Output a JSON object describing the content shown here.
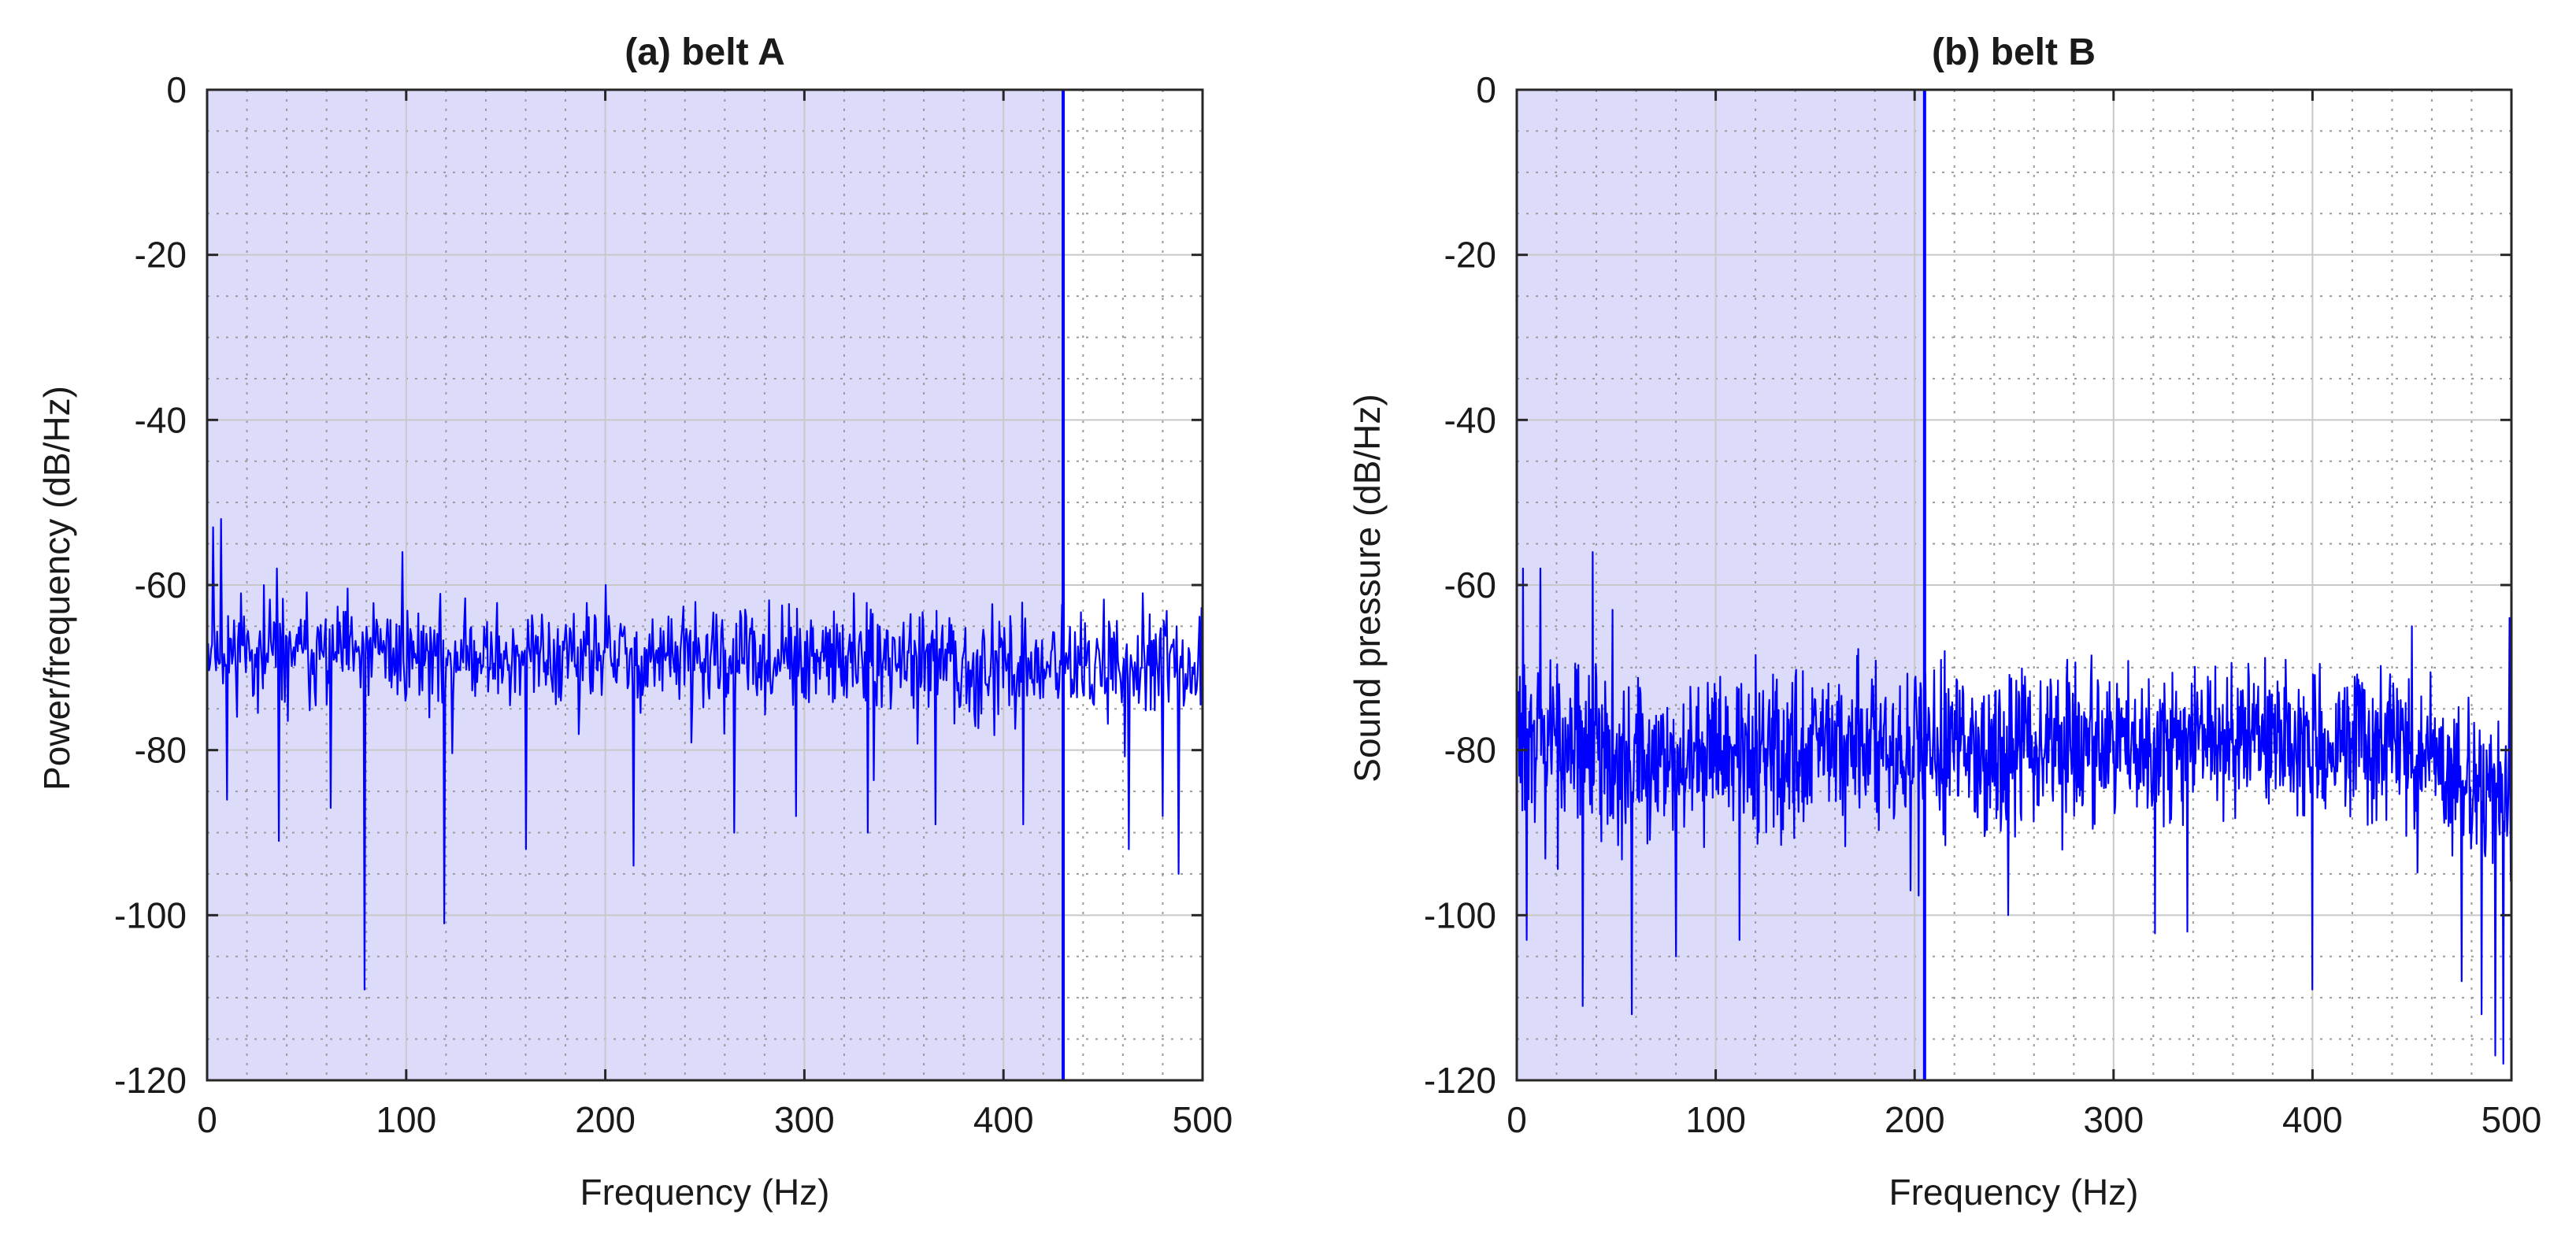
{
  "chart_data": [
    {
      "type": "line",
      "title": "(a) belt A",
      "xlabel": "Frequency (Hz)",
      "ylabel": "Power/frequency (dB/Hz)",
      "xlim": [
        0,
        500
      ],
      "ylim": [
        -120,
        0
      ],
      "xticks": [
        0,
        100,
        200,
        300,
        400,
        500
      ],
      "yticks": [
        0,
        -20,
        -40,
        -60,
        -80,
        -100,
        -120
      ],
      "grid": "major and minor (dotted)",
      "highlight_region": {
        "x": [
          0,
          430
        ],
        "color": "#dcdcfa",
        "edge_color": "#0000ff"
      },
      "series_color": "#0000ff",
      "series": [
        {
          "x_start": 0,
          "x_end": 500,
          "n": 1000,
          "baseline": -70,
          "noise_amplitude": 4.2,
          "noise_seed": 11,
          "profile": [
            {
              "x": 0,
              "y": -68
            },
            {
              "x": 500,
              "y": -70
            }
          ],
          "peaks": [
            {
              "x": 3,
              "y": -53
            },
            {
              "x": 7,
              "y": -52
            },
            {
              "x": 17,
              "y": -61
            },
            {
              "x": 35,
              "y": -58
            },
            {
              "x": 98,
              "y": -56
            },
            {
              "x": 200,
              "y": -60
            },
            {
              "x": 325,
              "y": -61
            },
            {
              "x": 470,
              "y": -61
            }
          ],
          "dips": [
            {
              "x": 10,
              "y": -86
            },
            {
              "x": 36,
              "y": -91
            },
            {
              "x": 62,
              "y": -87
            },
            {
              "x": 79,
              "y": -109
            },
            {
              "x": 119,
              "y": -101
            },
            {
              "x": 160,
              "y": -92
            },
            {
              "x": 214,
              "y": -94
            },
            {
              "x": 265,
              "y": -90
            },
            {
              "x": 296,
              "y": -88
            },
            {
              "x": 332,
              "y": -90
            },
            {
              "x": 366,
              "y": -89
            },
            {
              "x": 410,
              "y": -89
            },
            {
              "x": 463,
              "y": -92
            },
            {
              "x": 480,
              "y": -88
            },
            {
              "x": 488,
              "y": -95
            }
          ]
        }
      ]
    },
    {
      "type": "line",
      "title": "(b) belt B",
      "xlabel": "Frequency (Hz)",
      "ylabel": "Sound pressure (dB/Hz)",
      "xlim": [
        0,
        500
      ],
      "ylim": [
        -120,
        0
      ],
      "xticks": [
        0,
        100,
        200,
        300,
        400,
        500
      ],
      "yticks": [
        0,
        -20,
        -40,
        -60,
        -80,
        -100,
        -120
      ],
      "grid": "major and minor (dotted)",
      "highlight_region": {
        "x": [
          0,
          205
        ],
        "color": "#dcdcfa",
        "edge_color": "#0000ff"
      },
      "series_color": "#0000ff",
      "series": [
        {
          "x_start": 0,
          "x_end": 500,
          "n": 1600,
          "baseline": -79,
          "noise_amplitude": 6.5,
          "noise_seed": 29,
          "profile": [
            {
              "x": 0,
              "y": -78
            },
            {
              "x": 60,
              "y": -81
            },
            {
              "x": 150,
              "y": -80
            },
            {
              "x": 440,
              "y": -79
            },
            {
              "x": 470,
              "y": -82
            },
            {
              "x": 500,
              "y": -87
            }
          ],
          "peaks": [
            {
              "x": 3,
              "y": -58
            },
            {
              "x": 12,
              "y": -58
            },
            {
              "x": 38,
              "y": -56
            },
            {
              "x": 48,
              "y": -63
            },
            {
              "x": 112,
              "y": -68
            },
            {
              "x": 215,
              "y": -68
            },
            {
              "x": 450,
              "y": -65
            },
            {
              "x": 499,
              "y": -64
            }
          ],
          "dips": [
            {
              "x": 5,
              "y": -103
            },
            {
              "x": 33,
              "y": -111
            },
            {
              "x": 58,
              "y": -112
            },
            {
              "x": 80,
              "y": -105
            },
            {
              "x": 112,
              "y": -103
            },
            {
              "x": 198,
              "y": -97
            },
            {
              "x": 247,
              "y": -100
            },
            {
              "x": 337,
              "y": -102
            },
            {
              "x": 400,
              "y": -109
            },
            {
              "x": 475,
              "y": -108
            },
            {
              "x": 485,
              "y": -112
            },
            {
              "x": 492,
              "y": -117
            },
            {
              "x": 496,
              "y": -118
            }
          ]
        }
      ]
    }
  ]
}
